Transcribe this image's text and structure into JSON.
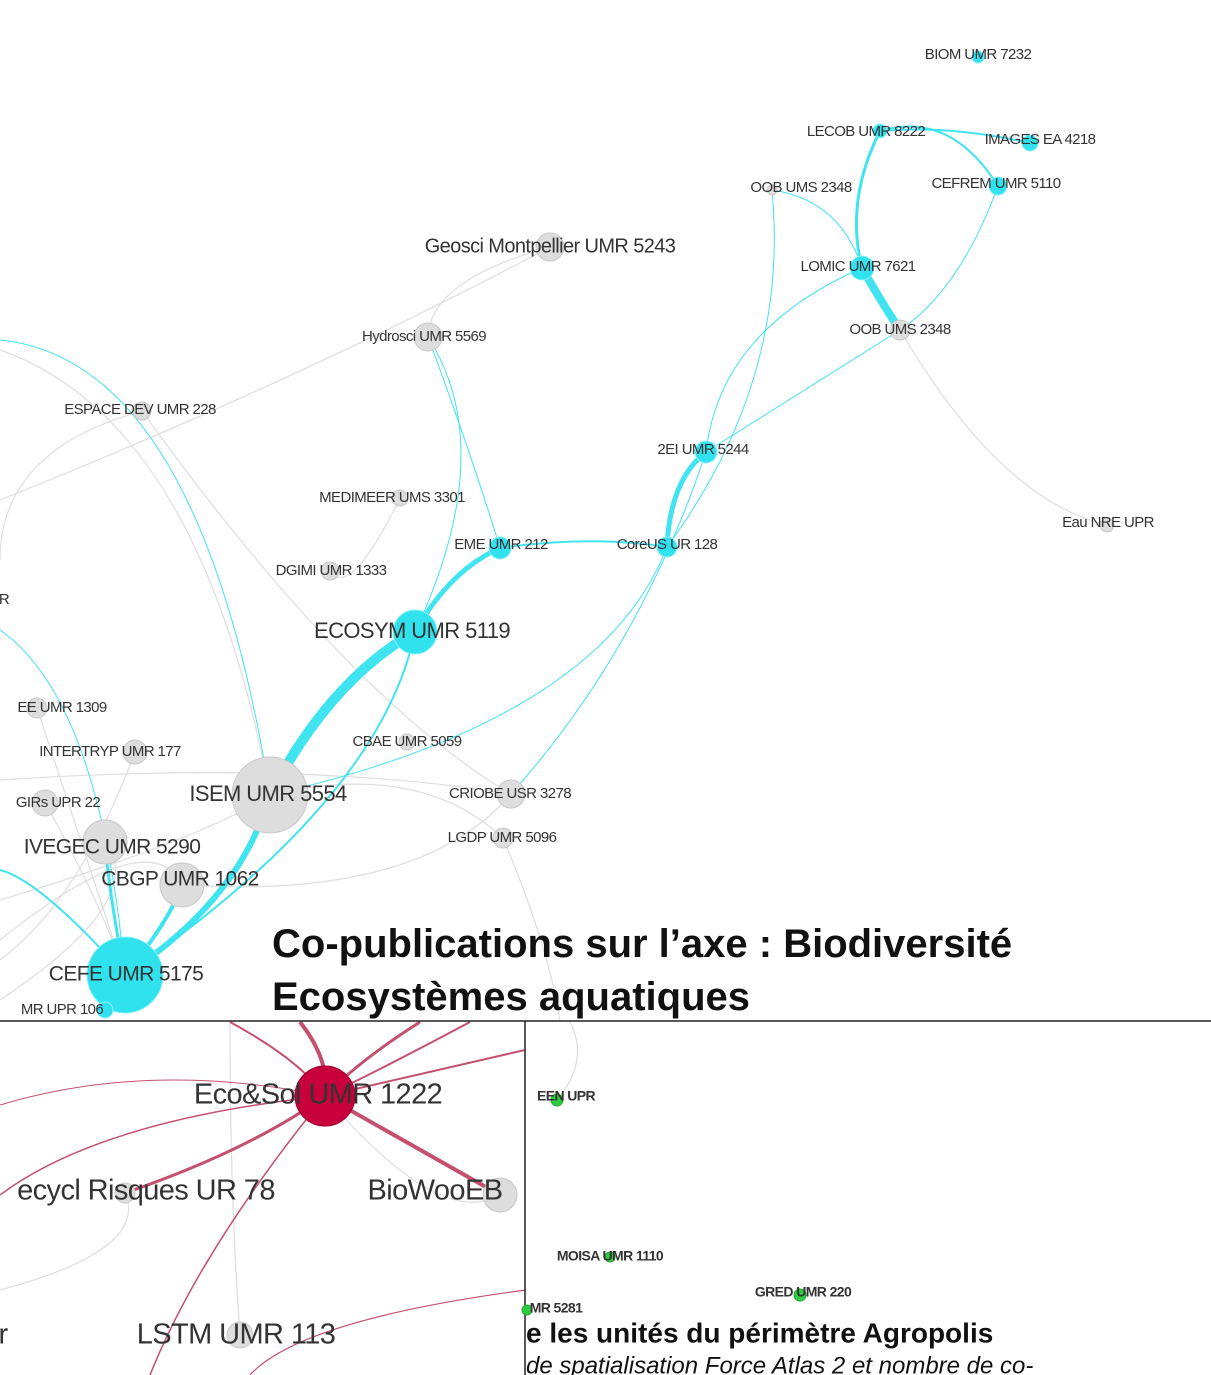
{
  "title_lines": [
    "Co-publications sur l’axe : Biodiversité",
    "Ecosystèmes aquatiques"
  ],
  "top_network": {
    "nodes": [
      {
        "label": "BIOM UMR 7232"
      },
      {
        "label": "LECOB UMR 8222"
      },
      {
        "label": "IMAGES EA 4218"
      },
      {
        "label": "OOB UMS 2348"
      },
      {
        "label": "CEFREM UMR 5110"
      },
      {
        "label": "Geosci Montpellier UMR 5243"
      },
      {
        "label": "LOMIC UMR 7621"
      },
      {
        "label": "OOB UMS 2348"
      },
      {
        "label": "Hydrosci UMR 5569"
      },
      {
        "label": "ESPACE DEV UMR 228"
      },
      {
        "label": "2EI UMR 5244"
      },
      {
        "label": "MEDIMEER UMS 3301"
      },
      {
        "label": "Eau NRE UPR"
      },
      {
        "label": "EME UMR 212"
      },
      {
        "label": "CoreUS UR 128"
      },
      {
        "label": "DGIMI UMR 1333"
      },
      {
        "label": "R"
      },
      {
        "label": "ECOSYM UMR 5119"
      },
      {
        "label": "EE UMR 1309"
      },
      {
        "label": "INTERTRYP UMR 177"
      },
      {
        "label": "CBAE UMR 5059"
      },
      {
        "label": "ISEM UMR 5554"
      },
      {
        "label": "CRIOBE USR 3278"
      },
      {
        "label": "GIRs UPR 22"
      },
      {
        "label": "LGDP UMR 5096"
      },
      {
        "label": "IVEGEC UMR 5290"
      },
      {
        "label": "CBGP UMR 1062"
      },
      {
        "label": "CEFE UMR 5175"
      },
      {
        "label": "MR UPR 106"
      }
    ]
  },
  "left_panel": {
    "nodes": [
      {
        "label": "Eco&Sol UMR 1222"
      },
      {
        "label": "ecycl Risques UR 78"
      },
      {
        "label": "BioWooEB"
      },
      {
        "label": "LSTM UMR 113"
      },
      {
        "label": "r"
      }
    ]
  },
  "right_panel": {
    "nodes": [
      {
        "label": "EEN UPR"
      },
      {
        "label": "MOISA UMR 1110"
      },
      {
        "label": "GRED UMR 220"
      },
      {
        "label": "MR 5281"
      }
    ],
    "caption_lines": [
      "e les unités du périmètre Agropolis",
      "de spatialisation Force Atlas 2 et nombre de co-"
    ]
  }
}
